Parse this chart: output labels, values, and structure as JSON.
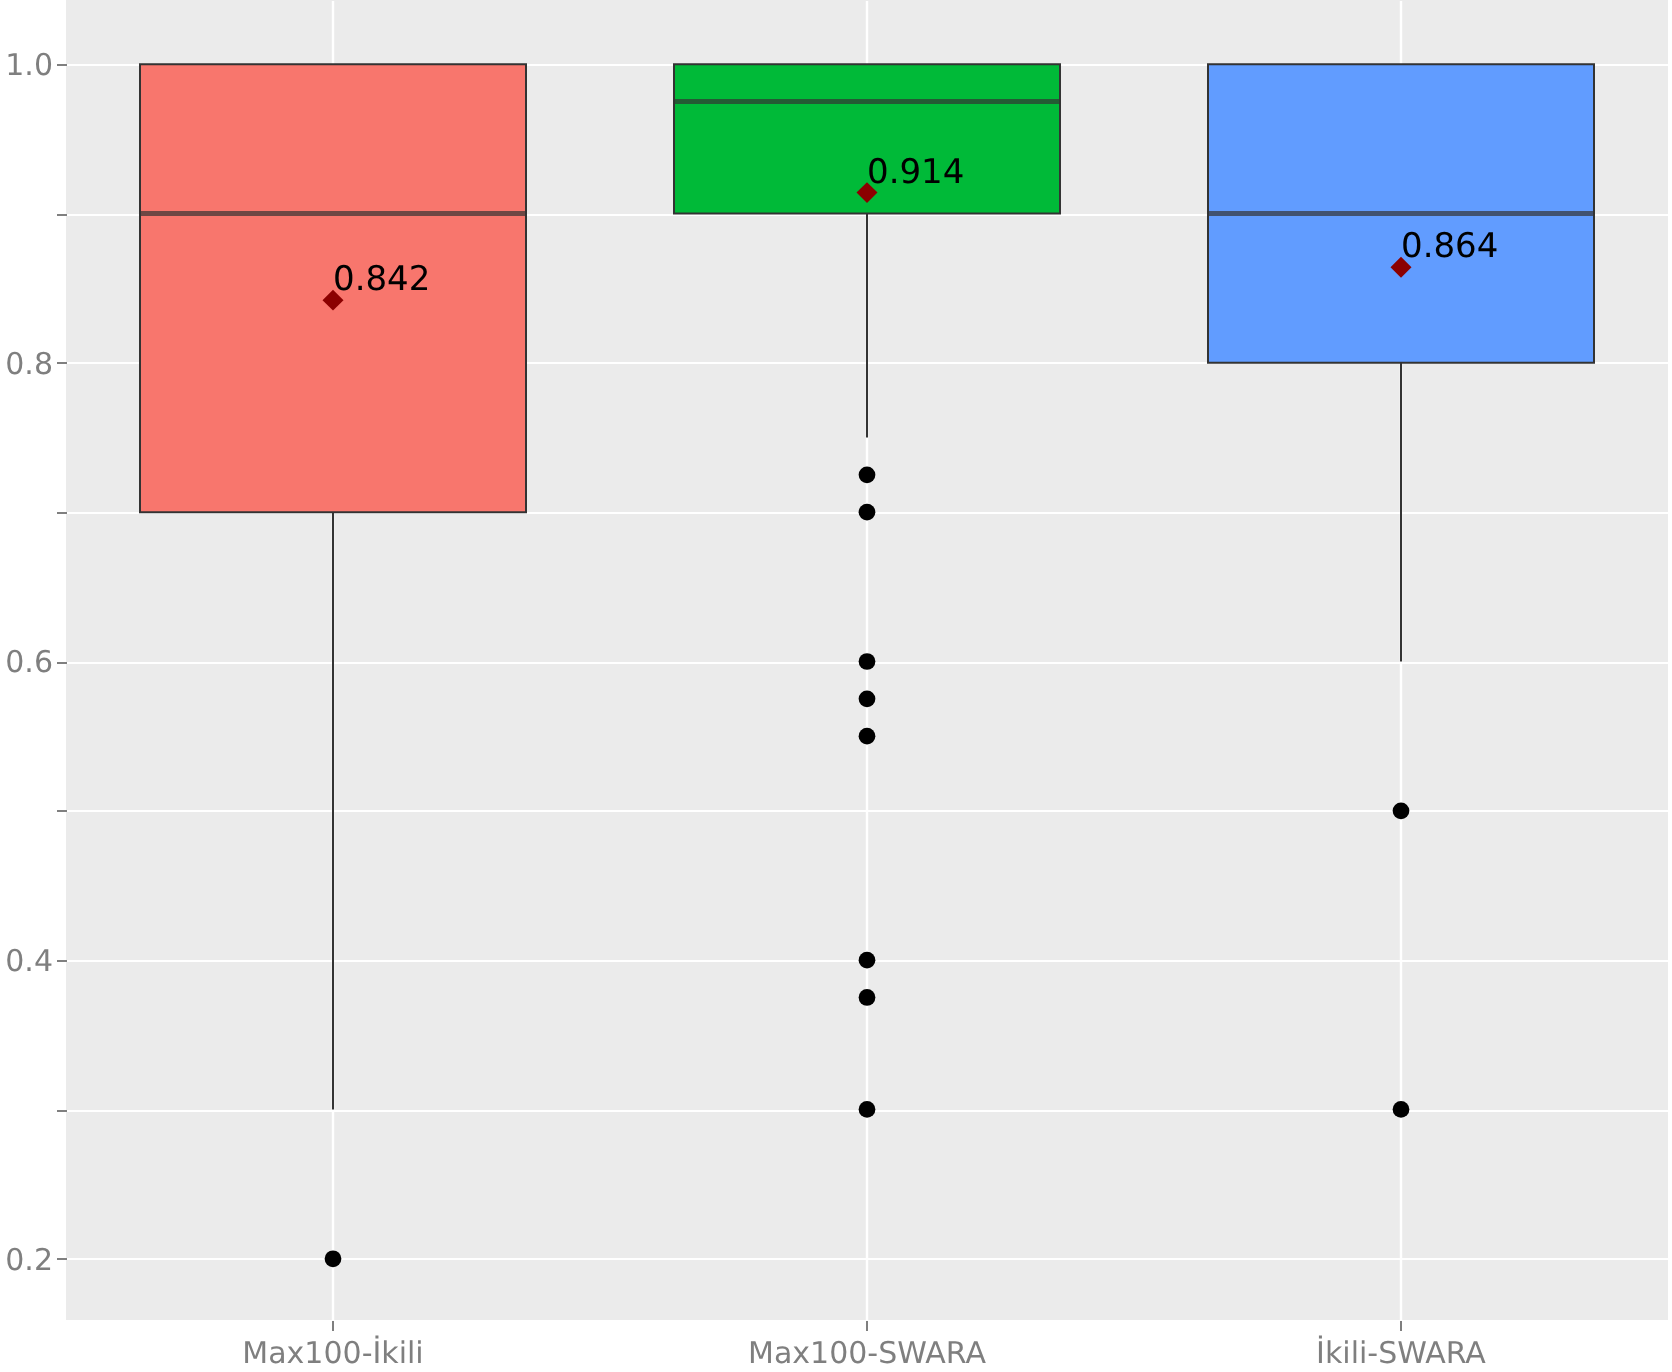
{
  "chart_data": {
    "type": "box",
    "categories": [
      "Max100-İkili",
      "Max100-SWARA",
      "İkili-SWARA"
    ],
    "series": [
      {
        "colors": [
          "#f8766d",
          "#00ba38",
          "#619cff"
        ],
        "boxes": [
          {
            "low": 0.3,
            "q1": 0.7,
            "median": 0.9,
            "q3": 1.0,
            "high": 1.0,
            "outliers": [
              0.2
            ]
          },
          {
            "low": 0.75,
            "q1": 0.9,
            "median": 0.975,
            "q3": 1.0,
            "high": 1.0,
            "outliers": [
              0.725,
              0.7,
              0.6,
              0.575,
              0.55,
              0.4,
              0.375,
              0.3
            ]
          },
          {
            "low": 0.6,
            "q1": 0.8,
            "median": 0.9,
            "q3": 1.0,
            "high": 1.0,
            "outliers": [
              0.5,
              0.3
            ]
          }
        ]
      },
      {
        "type": "scatter",
        "x": [
          "Max100-İkili",
          "Max100-SWARA",
          "İkili-SWARA"
        ],
        "values": [
          0.842,
          0.914,
          0.864
        ],
        "color": "#8b0000",
        "marker": "diamond"
      }
    ],
    "ylim": [
      0.159,
      1.043
    ],
    "yticks": [
      0.2,
      {
        "value": 0.3,
        "label": null
      },
      0.4,
      {
        "value": 0.5,
        "label": null
      },
      0.6,
      {
        "value": 0.7,
        "label": null
      },
      0.8,
      {
        "value": 0.9,
        "label": null
      },
      {
        "value": 1.0,
        "label": "1.0"
      }
    ],
    "data_labels": true,
    "grid": true
  }
}
